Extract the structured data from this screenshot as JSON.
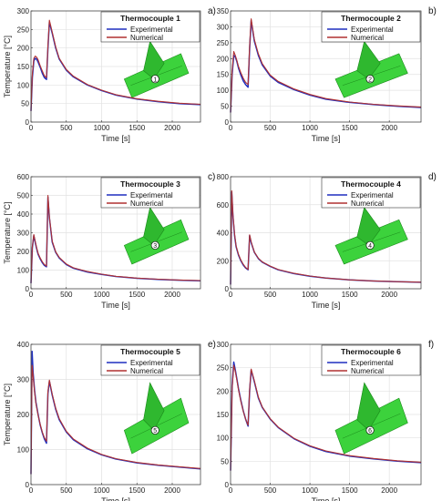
{
  "chart_data": [
    {
      "type": "line",
      "panel_label": "a)",
      "title": "Thermocouple 1",
      "xlabel": "Time [s]",
      "ylabel": "Temperature [°C]",
      "xlim": [
        0,
        2400
      ],
      "ylim": [
        0,
        300
      ],
      "xticks": [
        0,
        500,
        1000,
        1500,
        2000
      ],
      "xtick_labels": [
        "0",
        "500",
        "1000",
        "1500",
        "2000"
      ],
      "yticks": [
        0,
        50,
        100,
        150,
        200,
        250,
        300
      ],
      "ytick_labels": [
        "0",
        "50",
        "100",
        "150",
        "200",
        "250",
        "300"
      ],
      "grid": true,
      "legend_position": "top-right",
      "inset_marker": "1",
      "series": [
        {
          "name": "Experimental",
          "color": "#1f2fbf",
          "x": [
            0,
            20,
            40,
            60,
            80,
            100,
            130,
            160,
            190,
            220,
            240,
            260,
            300,
            350,
            400,
            500,
            600,
            800,
            1000,
            1200,
            1500,
            1800,
            2100,
            2400
          ],
          "y": [
            30,
            120,
            165,
            172,
            170,
            162,
            148,
            132,
            120,
            115,
            200,
            270,
            240,
            200,
            170,
            140,
            122,
            100,
            85,
            73,
            62,
            55,
            50,
            47
          ]
        },
        {
          "name": "Numerical",
          "color": "#b03030",
          "x": [
            0,
            20,
            40,
            60,
            80,
            100,
            130,
            160,
            190,
            220,
            240,
            260,
            300,
            350,
            400,
            500,
            600,
            800,
            1000,
            1200,
            1500,
            1800,
            2100,
            2400
          ],
          "y": [
            30,
            130,
            172,
            178,
            175,
            168,
            152,
            138,
            125,
            120,
            205,
            275,
            243,
            203,
            172,
            142,
            124,
            101,
            86,
            74,
            63,
            56,
            51,
            48
          ]
        }
      ]
    },
    {
      "type": "line",
      "panel_label": "b)",
      "title": "Thermocouple 2",
      "xlabel": "Time [s]",
      "ylabel": "",
      "xlim": [
        0,
        2400
      ],
      "ylim": [
        0,
        350
      ],
      "xticks": [
        0,
        500,
        1000,
        1500,
        2000
      ],
      "xtick_labels": [
        "0",
        "500",
        "1000",
        "1500",
        "2000"
      ],
      "yticks": [
        0,
        50,
        100,
        150,
        200,
        250,
        300,
        350
      ],
      "ytick_labels": [
        "0",
        "50",
        "100",
        "150",
        "200",
        "250",
        "300",
        "350"
      ],
      "grid": true,
      "legend_position": "top-right",
      "inset_marker": "2",
      "series": [
        {
          "name": "Experimental",
          "color": "#1f2fbf",
          "x": [
            0,
            20,
            40,
            60,
            80,
            100,
            130,
            160,
            190,
            220,
            240,
            260,
            300,
            350,
            400,
            500,
            600,
            800,
            1000,
            1200,
            1500,
            1800,
            2100,
            2400
          ],
          "y": [
            30,
            150,
            210,
            205,
            190,
            170,
            148,
            130,
            118,
            110,
            230,
            320,
            255,
            210,
            180,
            145,
            125,
            102,
            85,
            72,
            62,
            55,
            50,
            46
          ]
        },
        {
          "name": "Numerical",
          "color": "#b03030",
          "x": [
            0,
            20,
            40,
            60,
            80,
            100,
            130,
            160,
            190,
            220,
            240,
            260,
            300,
            350,
            400,
            500,
            600,
            800,
            1000,
            1200,
            1500,
            1800,
            2100,
            2400
          ],
          "y": [
            30,
            160,
            222,
            210,
            193,
            175,
            155,
            138,
            125,
            118,
            240,
            325,
            260,
            215,
            184,
            148,
            128,
            104,
            87,
            74,
            63,
            56,
            51,
            47
          ]
        }
      ]
    },
    {
      "type": "line",
      "panel_label": "c)",
      "title": "Thermocouple 3",
      "xlabel": "Time [s]",
      "ylabel": "Temperature [°C]",
      "xlim": [
        0,
        2400
      ],
      "ylim": [
        0,
        600
      ],
      "xticks": [
        0,
        500,
        1000,
        1500,
        2000
      ],
      "xtick_labels": [
        "0",
        "500",
        "1000",
        "1500",
        "2000"
      ],
      "yticks": [
        0,
        100,
        200,
        300,
        400,
        500,
        600
      ],
      "ytick_labels": [
        "0",
        "100",
        "200",
        "300",
        "400",
        "500",
        "600"
      ],
      "grid": true,
      "legend_position": "top-right",
      "inset_marker": "3",
      "series": [
        {
          "name": "Experimental",
          "color": "#1f2fbf",
          "x": [
            0,
            20,
            40,
            60,
            80,
            100,
            130,
            160,
            190,
            220,
            240,
            260,
            300,
            350,
            400,
            500,
            600,
            800,
            1000,
            1200,
            1500,
            1800,
            2100,
            2400
          ],
          "y": [
            30,
            220,
            285,
            250,
            215,
            185,
            160,
            140,
            125,
            118,
            490,
            380,
            250,
            195,
            165,
            130,
            110,
            90,
            77,
            66,
            56,
            50,
            46,
            43
          ]
        },
        {
          "name": "Numerical",
          "color": "#b03030",
          "x": [
            0,
            20,
            40,
            60,
            80,
            100,
            130,
            160,
            190,
            220,
            240,
            260,
            300,
            350,
            400,
            500,
            600,
            800,
            1000,
            1200,
            1500,
            1800,
            2100,
            2400
          ],
          "y": [
            30,
            225,
            290,
            255,
            220,
            190,
            165,
            145,
            130,
            122,
            500,
            385,
            255,
            198,
            168,
            132,
            112,
            92,
            78,
            67,
            57,
            51,
            47,
            44
          ]
        }
      ]
    },
    {
      "type": "line",
      "panel_label": "d)",
      "title": "Thermocouple 4",
      "xlabel": "Time [s]",
      "ylabel": "",
      "xlim": [
        0,
        2400
      ],
      "ylim": [
        0,
        800
      ],
      "xticks": [
        0,
        500,
        1000,
        1500,
        2000
      ],
      "xtick_labels": [
        "0",
        "500",
        "1000",
        "1500",
        "2000"
      ],
      "yticks": [
        0,
        200,
        400,
        600,
        800
      ],
      "ytick_labels": [
        "0",
        "200",
        "400",
        "600",
        "800"
      ],
      "grid": true,
      "legend_position": "top-right",
      "inset_marker": "4",
      "series": [
        {
          "name": "Experimental",
          "color": "#1f2fbf",
          "x": [
            0,
            15,
            30,
            50,
            70,
            100,
            130,
            160,
            190,
            220,
            240,
            260,
            300,
            350,
            400,
            500,
            600,
            800,
            1000,
            1200,
            1500,
            1800,
            2100,
            2400
          ],
          "y": [
            30,
            690,
            520,
            380,
            300,
            240,
            200,
            170,
            148,
            135,
            380,
            330,
            260,
            215,
            190,
            160,
            135,
            108,
            90,
            76,
            63,
            55,
            50,
            46
          ]
        },
        {
          "name": "Numerical",
          "color": "#b03030",
          "x": [
            0,
            15,
            30,
            50,
            70,
            100,
            130,
            160,
            190,
            220,
            240,
            260,
            300,
            350,
            400,
            500,
            600,
            800,
            1000,
            1200,
            1500,
            1800,
            2100,
            2400
          ],
          "y": [
            30,
            700,
            530,
            390,
            305,
            245,
            205,
            175,
            152,
            138,
            385,
            335,
            262,
            218,
            192,
            162,
            137,
            110,
            91,
            77,
            64,
            56,
            51,
            47
          ]
        }
      ]
    },
    {
      "type": "line",
      "panel_label": "e)",
      "title": "Thermocouple 5",
      "xlabel": "Time [s]",
      "ylabel": "Temperature [°C]",
      "xlim": [
        0,
        2400
      ],
      "ylim": [
        0,
        400
      ],
      "xticks": [
        0,
        500,
        1000,
        1500,
        2000
      ],
      "xtick_labels": [
        "0",
        "500",
        "1000",
        "1500",
        "2000"
      ],
      "yticks": [
        0,
        100,
        200,
        300,
        400
      ],
      "ytick_labels": [
        "0",
        "100",
        "200",
        "300",
        "400"
      ],
      "grid": true,
      "legend_position": "top-right",
      "inset_marker": "5",
      "series": [
        {
          "name": "Experimental",
          "color": "#1f2fbf",
          "x": [
            0,
            15,
            30,
            50,
            70,
            100,
            130,
            160,
            190,
            220,
            240,
            260,
            300,
            350,
            400,
            500,
            600,
            800,
            1000,
            1200,
            1500,
            1800,
            2100,
            2400
          ],
          "y": [
            30,
            380,
            320,
            270,
            235,
            200,
            170,
            148,
            130,
            118,
            260,
            295,
            255,
            215,
            185,
            150,
            128,
            102,
            85,
            73,
            62,
            55,
            50,
            45
          ]
        },
        {
          "name": "Numerical",
          "color": "#b03030",
          "x": [
            0,
            15,
            30,
            50,
            70,
            100,
            130,
            160,
            190,
            220,
            240,
            260,
            300,
            350,
            400,
            500,
            600,
            800,
            1000,
            1200,
            1500,
            1800,
            2100,
            2400
          ],
          "y": [
            30,
            340,
            310,
            265,
            232,
            198,
            172,
            150,
            134,
            124,
            265,
            298,
            258,
            218,
            188,
            152,
            130,
            104,
            86,
            74,
            63,
            56,
            51,
            46
          ]
        }
      ]
    },
    {
      "type": "line",
      "panel_label": "f)",
      "title": "Thermocouple 6",
      "xlabel": "Time [s]",
      "ylabel": "",
      "xlim": [
        0,
        2400
      ],
      "ylim": [
        0,
        300
      ],
      "xticks": [
        0,
        500,
        1000,
        1500,
        2000
      ],
      "xtick_labels": [
        "0",
        "500",
        "1000",
        "1500",
        "2000"
      ],
      "yticks": [
        0,
        50,
        100,
        150,
        200,
        250,
        300
      ],
      "ytick_labels": [
        "0",
        "50",
        "100",
        "150",
        "200",
        "250",
        "300"
      ],
      "grid": true,
      "legend_position": "top-right",
      "inset_marker": "6",
      "series": [
        {
          "name": "Experimental",
          "color": "#1f2fbf",
          "x": [
            0,
            20,
            40,
            60,
            80,
            100,
            130,
            160,
            190,
            220,
            240,
            260,
            300,
            350,
            400,
            500,
            600,
            800,
            1000,
            1200,
            1500,
            1800,
            2100,
            2400
          ],
          "y": [
            30,
            210,
            262,
            245,
            225,
            205,
            180,
            158,
            140,
            125,
            200,
            245,
            220,
            185,
            165,
            140,
            122,
            98,
            82,
            71,
            61,
            55,
            50,
            47
          ]
        },
        {
          "name": "Numerical",
          "color": "#b03030",
          "x": [
            0,
            20,
            40,
            60,
            80,
            100,
            130,
            160,
            190,
            220,
            240,
            260,
            300,
            350,
            400,
            500,
            600,
            800,
            1000,
            1200,
            1500,
            1800,
            2100,
            2400
          ],
          "y": [
            30,
            205,
            255,
            242,
            223,
            203,
            178,
            157,
            140,
            127,
            203,
            247,
            222,
            187,
            166,
            141,
            123,
            99,
            83,
            72,
            62,
            56,
            51,
            48
          ]
        }
      ]
    }
  ]
}
